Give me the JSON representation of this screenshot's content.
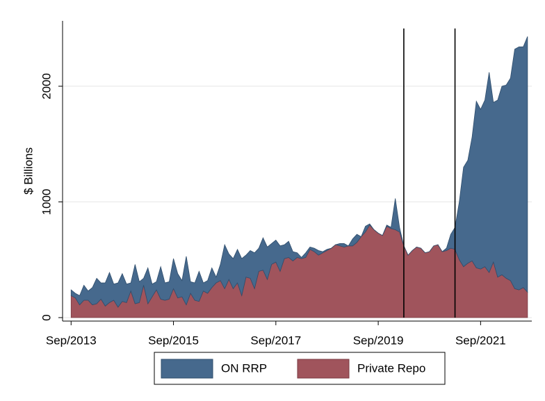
{
  "chart_data": {
    "type": "stacked_area",
    "ylabel": "$ Billions",
    "x": [
      "2013-09",
      "2013-10",
      "2013-11",
      "2013-12",
      "2014-01",
      "2014-02",
      "2014-03",
      "2014-04",
      "2014-05",
      "2014-06",
      "2014-07",
      "2014-08",
      "2014-09",
      "2014-10",
      "2014-11",
      "2014-12",
      "2015-01",
      "2015-02",
      "2015-03",
      "2015-04",
      "2015-05",
      "2015-06",
      "2015-07",
      "2015-08",
      "2015-09",
      "2015-10",
      "2015-11",
      "2015-12",
      "2016-01",
      "2016-02",
      "2016-03",
      "2016-04",
      "2016-05",
      "2016-06",
      "2016-07",
      "2016-08",
      "2016-09",
      "2016-10",
      "2016-11",
      "2016-12",
      "2017-01",
      "2017-02",
      "2017-03",
      "2017-04",
      "2017-05",
      "2017-06",
      "2017-07",
      "2017-08",
      "2017-09",
      "2017-10",
      "2017-11",
      "2017-12",
      "2018-01",
      "2018-02",
      "2018-03",
      "2018-04",
      "2018-05",
      "2018-06",
      "2018-07",
      "2018-08",
      "2018-09",
      "2018-10",
      "2018-11",
      "2018-12",
      "2019-01",
      "2019-02",
      "2019-03",
      "2019-04",
      "2019-05",
      "2019-06",
      "2019-07",
      "2019-08",
      "2019-09",
      "2019-10",
      "2019-11",
      "2019-12",
      "2020-01",
      "2020-02",
      "2020-03",
      "2020-04",
      "2020-05",
      "2020-06",
      "2020-07",
      "2020-08",
      "2020-09",
      "2020-10",
      "2020-11",
      "2020-12",
      "2021-01",
      "2021-02",
      "2021-03",
      "2021-04",
      "2021-05",
      "2021-06",
      "2021-07",
      "2021-08",
      "2021-09",
      "2021-10",
      "2021-11",
      "2021-12",
      "2022-01",
      "2022-02",
      "2022-03",
      "2022-04",
      "2022-05",
      "2022-06",
      "2022-07",
      "2022-08"
    ],
    "series": [
      {
        "name": "Private Repo",
        "color": "#a0545c",
        "edge": "#7a3a42",
        "values": [
          190,
          170,
          110,
          150,
          150,
          110,
          120,
          160,
          100,
          130,
          150,
          90,
          140,
          130,
          230,
          120,
          130,
          280,
          120,
          180,
          240,
          160,
          150,
          160,
          250,
          170,
          180,
          110,
          210,
          150,
          140,
          230,
          210,
          260,
          300,
          320,
          250,
          330,
          250,
          300,
          190,
          350,
          340,
          250,
          400,
          410,
          330,
          460,
          480,
          400,
          510,
          520,
          490,
          520,
          510,
          520,
          590,
          570,
          540,
          560,
          580,
          600,
          630,
          620,
          610,
          620,
          620,
          650,
          700,
          740,
          800,
          760,
          730,
          710,
          790,
          770,
          760,
          740,
          620,
          540,
          580,
          610,
          600,
          560,
          570,
          620,
          630,
          570,
          580,
          600,
          590,
          500,
          440,
          470,
          490,
          430,
          420,
          440,
          390,
          480,
          350,
          370,
          340,
          320,
          250,
          240,
          260,
          220
        ]
      },
      {
        "name": "ON RRP",
        "color": "#46698d",
        "edge": "#2f4d6c",
        "values": [
          50,
          40,
          80,
          130,
          80,
          150,
          220,
          140,
          200,
          260,
          140,
          210,
          240,
          160,
          70,
          340,
          180,
          60,
          310,
          110,
          70,
          280,
          150,
          150,
          260,
          210,
          140,
          420,
          100,
          150,
          260,
          70,
          110,
          170,
          50,
          140,
          380,
          220,
          260,
          290,
          320,
          190,
          240,
          310,
          200,
          280,
          280,
          180,
          190,
          220,
          120,
          140,
          80,
          40,
          10,
          40,
          20,
          30,
          40,
          10,
          10,
          0,
          0,
          20,
          30,
          0,
          60,
          70,
          0,
          50,
          10,
          0,
          0,
          0,
          10,
          10,
          270,
          40,
          0,
          0,
          0,
          0,
          0,
          0,
          0,
          0,
          0,
          0,
          20,
          120,
          190,
          500,
          860,
          890,
          1070,
          1440,
          1380,
          1440,
          1730,
          1380,
          1530,
          1630,
          1670,
          1750,
          2070,
          2100,
          2080,
          2210
        ]
      }
    ],
    "legend_order": [
      1,
      0
    ],
    "xlim": [
      "2013-07",
      "2022-09"
    ],
    "xticks": [
      {
        "value": "2013-09",
        "label": "Sep/2013"
      },
      {
        "value": "2015-09",
        "label": "Sep/2015"
      },
      {
        "value": "2017-09",
        "label": "Sep/2017"
      },
      {
        "value": "2019-09",
        "label": "Sep/2019"
      },
      {
        "value": "2021-09",
        "label": "Sep/2021"
      }
    ],
    "ylim": [
      -30,
      2565
    ],
    "yticks": [
      0,
      1000,
      2000
    ],
    "vlines": [
      "2020-03",
      "2021-03"
    ],
    "grid": true,
    "legend": "bottom"
  }
}
